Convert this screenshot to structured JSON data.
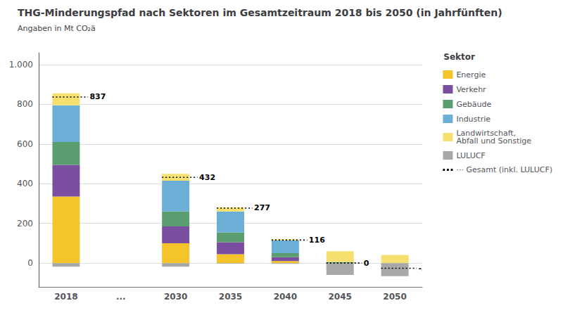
{
  "chart_data": {
    "type": "bar",
    "title": "THG-Minderungspfad nach Sektoren im Gesamtzeitraum 2018 bis 2050 (in Jahrfünften)",
    "subtitle": "Angaben in Mt CO₂ä",
    "categories": [
      "2018",
      "...",
      "2030",
      "2035",
      "2040",
      "2045",
      "2050"
    ],
    "stacked": true,
    "series": [
      {
        "name": "Energie",
        "type": "bar",
        "color": "#F5C42A",
        "values": [
          335,
          0,
          100,
          45,
          10,
          0,
          0
        ]
      },
      {
        "name": "Verkehr",
        "type": "bar",
        "color": "#7B4FA0",
        "values": [
          160,
          0,
          85,
          60,
          20,
          0,
          0
        ]
      },
      {
        "name": "Gebäude",
        "type": "bar",
        "color": "#5A9E6F",
        "values": [
          115,
          0,
          75,
          50,
          20,
          5,
          0
        ]
      },
      {
        "name": "Industrie",
        "type": "bar",
        "color": "#6BAED6",
        "values": [
          185,
          0,
          155,
          105,
          65,
          0,
          0
        ]
      },
      {
        "name": "Landwirtschaft,\nAbfall und Sonstige",
        "type": "bar",
        "color": "#F5E070",
        "values": [
          60,
          0,
          35,
          20,
          5,
          55,
          40
        ]
      },
      {
        "name": "LULUCF",
        "type": "bar",
        "color": "#A8A8A8",
        "values": [
          -18,
          0,
          -18,
          -3,
          -4,
          -60,
          -66
        ]
      },
      {
        "name": "··· Gesamt (inkl. LULUCF)",
        "type": "line",
        "line_style": "dotted",
        "color": "#000000",
        "values": [
          837,
          null,
          432,
          277,
          116,
          0,
          -26
        ],
        "data_labels": true
      }
    ],
    "ylim": [
      -120,
      1060
    ],
    "yticks": [
      0,
      200,
      400,
      600,
      800,
      {
        "value": 1000,
        "label": "1.000"
      }
    ],
    "grid": true,
    "legend": "upper right",
    "legend_title": "Sektor"
  }
}
